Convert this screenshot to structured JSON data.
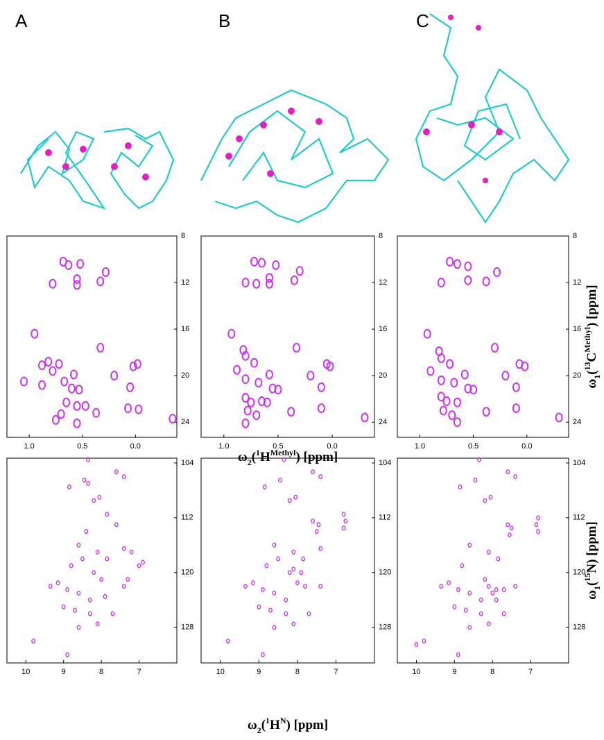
{
  "panel_labels": [
    "A",
    "B",
    "C"
  ],
  "chart_data": [
    {
      "type": "scatter",
      "color": "#cc33ee",
      "xlim": [
        1.21,
        -0.39
      ],
      "ylim": [
        8,
        25.3
      ],
      "xticks": [
        {
          "value": 1,
          "label": "1.0"
        },
        0.5,
        {
          "value": 0,
          "label": "0.0"
        }
      ],
      "yticks": [
        8,
        12,
        16,
        20,
        24
      ],
      "x": [
        0.68,
        0.63,
        0.52,
        0.28,
        0.78,
        0.55,
        0.55,
        0.33,
        0.95,
        0.33,
        0.82,
        0.88,
        0.72,
        0.58,
        0.78,
        0.02,
        -0.02,
        1.05,
        0.88,
        0.67,
        0.53,
        0.6,
        0.2,
        0.05,
        0.65,
        0.55,
        0.47,
        0.7,
        0.75,
        0.55,
        0.37,
        0.07,
        -0.03,
        -0.35
      ],
      "y": [
        10.2,
        10.5,
        10.4,
        11.1,
        12.1,
        11.7,
        12.2,
        11.9,
        16.4,
        17.6,
        18.8,
        19.1,
        19.0,
        19.9,
        19.6,
        19.2,
        19.0,
        20.5,
        20.8,
        20.5,
        21.2,
        21.1,
        20.0,
        21.0,
        22.3,
        22.6,
        22.6,
        23.3,
        23.8,
        24.1,
        23.2,
        22.8,
        22.9,
        23.7
      ]
    },
    {
      "type": "scatter",
      "color": "#cc33ee",
      "xlim": [
        1.21,
        -0.39
      ],
      "ylim": [
        8,
        25.3
      ],
      "xticks": [
        {
          "value": 1,
          "label": "1.0"
        },
        0.5,
        {
          "value": 0,
          "label": "0.0"
        }
      ],
      "yticks": [
        8,
        12,
        16,
        20,
        24
      ],
      "xlabel": {
        "symbol": "ω",
        "index": "2",
        "isotope": "1",
        "nucleus": "H",
        "superscript": "Methyl",
        "unit": "[ppm]"
      },
      "x": [
        0.72,
        0.65,
        0.52,
        0.3,
        0.8,
        0.7,
        0.58,
        0.58,
        0.35,
        0.93,
        0.33,
        0.82,
        0.8,
        0.72,
        0.58,
        0.02,
        0.05,
        0.88,
        0.8,
        0.68,
        0.55,
        0.5,
        0.2,
        0.1,
        0.8,
        0.75,
        0.65,
        0.6,
        0.78,
        0.7,
        0.8,
        0.38,
        0.1,
        -0.3
      ],
      "y": [
        10.2,
        10.3,
        10.5,
        11.0,
        12.0,
        12.1,
        11.6,
        12.1,
        11.8,
        16.4,
        17.6,
        17.8,
        18.3,
        18.9,
        19.9,
        19.2,
        19.0,
        19.5,
        20.3,
        20.6,
        21.1,
        21.2,
        20.0,
        21.0,
        21.9,
        22.3,
        22.2,
        22.3,
        23.0,
        23.4,
        24.1,
        23.1,
        22.8,
        23.6
      ]
    },
    {
      "type": "scatter",
      "color": "#cc33ee",
      "xlim": [
        1.21,
        -0.39
      ],
      "ylim": [
        8,
        25.3
      ],
      "xticks": [
        {
          "value": 1,
          "label": "1.0"
        },
        0.5,
        {
          "value": 0,
          "label": "0.0"
        }
      ],
      "yticks": [
        8,
        12,
        16,
        20,
        24
      ],
      "ylabel": {
        "symbol": "ω",
        "index": "1",
        "isotope": "13",
        "nucleus": "C",
        "superscript": "Methyl",
        "unit": "[ppm]"
      },
      "x": [
        0.72,
        0.65,
        0.55,
        0.28,
        0.8,
        0.55,
        0.38,
        0.93,
        0.3,
        0.82,
        0.8,
        0.72,
        0.58,
        0.02,
        0.07,
        0.9,
        0.8,
        0.68,
        0.55,
        0.5,
        0.2,
        0.1,
        0.8,
        0.75,
        0.65,
        0.78,
        0.7,
        0.65,
        0.38,
        0.1,
        -0.3
      ],
      "y": [
        10.2,
        10.4,
        10.6,
        11.1,
        12.0,
        11.8,
        11.9,
        16.4,
        17.6,
        17.9,
        18.5,
        19.0,
        19.9,
        19.2,
        19.0,
        19.6,
        20.4,
        20.6,
        21.1,
        21.2,
        20.0,
        21.0,
        21.8,
        22.2,
        22.3,
        23.0,
        23.4,
        24.0,
        23.1,
        22.8,
        23.6
      ]
    },
    {
      "type": "scatter",
      "color": "#cc33ee",
      "xlim": [
        10.5,
        6.0
      ],
      "ylim": [
        103.3,
        133.2
      ],
      "xticks": [
        10,
        9,
        8,
        7
      ],
      "yticks": [
        104,
        112,
        120,
        128
      ],
      "x": [
        8.35,
        8.85,
        8.45,
        8.35,
        7.6,
        7.4,
        8.05,
        8.2,
        7.85,
        7.6,
        8.4,
        8.6,
        8.1,
        7.4,
        7.2,
        6.9,
        8.8,
        8.2,
        8.0,
        9.15,
        9.35,
        8.9,
        8.6,
        8.3,
        7.9,
        7.4,
        9.0,
        8.7,
        8.3,
        8.1,
        7.7,
        8.6,
        9.8,
        8.9,
        7.3,
        7.0,
        8.5,
        7.85
      ],
      "y": [
        103.5,
        107.5,
        106.5,
        107.0,
        105.3,
        106.0,
        109.0,
        109.5,
        111.5,
        113.0,
        114.0,
        116.0,
        117.0,
        116.5,
        117.0,
        118.5,
        119.0,
        120.0,
        121.0,
        121.5,
        122.0,
        122.5,
        123.0,
        124.0,
        123.5,
        122.0,
        125.0,
        125.5,
        126.0,
        127.5,
        126.0,
        128.0,
        130.0,
        132.0,
        121.0,
        119.0,
        118.0,
        118.0
      ]
    },
    {
      "type": "scatter",
      "color": "#cc33ee",
      "xlim": [
        10.5,
        6.0
      ],
      "ylim": [
        103.3,
        133.2
      ],
      "xticks": [
        10,
        9,
        8,
        7
      ],
      "yticks": [
        104,
        112,
        120,
        128
      ],
      "xlabel": {
        "symbol": "ω",
        "index": "2",
        "isotope": "1",
        "nucleus": "H",
        "superscript": "N",
        "unit": "[ppm]"
      },
      "x": [
        8.35,
        8.85,
        8.45,
        7.6,
        7.4,
        8.05,
        8.2,
        7.6,
        7.45,
        7.5,
        6.8,
        6.75,
        6.8,
        8.6,
        8.1,
        7.4,
        8.8,
        8.2,
        8.1,
        7.9,
        8.0,
        7.8,
        9.15,
        9.35,
        8.9,
        8.6,
        8.3,
        7.4,
        9.0,
        8.7,
        8.3,
        8.1,
        7.7,
        8.6,
        9.8,
        8.9,
        8.5,
        7.85
      ],
      "y": [
        103.5,
        107.5,
        106.5,
        105.3,
        106.0,
        109.0,
        109.5,
        112.5,
        113.0,
        114.0,
        111.5,
        112.5,
        113.5,
        116.0,
        117.0,
        116.5,
        119.0,
        120.0,
        119.5,
        120.0,
        121.5,
        122.0,
        121.5,
        122.0,
        122.5,
        123.0,
        124.0,
        122.0,
        125.0,
        125.5,
        126.0,
        127.5,
        126.0,
        128.0,
        130.0,
        132.0,
        118.0,
        118.0
      ]
    },
    {
      "type": "scatter",
      "color": "#cc33ee",
      "xlim": [
        10.5,
        6.0
      ],
      "ylim": [
        103.3,
        133.2
      ],
      "xticks": [
        10,
        9,
        8,
        7
      ],
      "yticks": [
        104,
        112,
        120,
        128
      ],
      "ylabel": {
        "symbol": "ω",
        "index": "1",
        "isotope": "15",
        "nucleus": "N",
        "unit": "[ppm]"
      },
      "x": [
        8.35,
        8.85,
        8.45,
        7.6,
        7.4,
        8.05,
        8.2,
        7.6,
        7.5,
        7.55,
        6.8,
        6.85,
        6.8,
        8.6,
        8.1,
        8.8,
        8.2,
        8.1,
        7.9,
        8.0,
        7.7,
        7.9,
        9.15,
        9.35,
        8.9,
        8.6,
        8.3,
        7.4,
        9.0,
        8.7,
        8.3,
        8.1,
        7.7,
        8.6,
        10.0,
        9.8,
        8.9,
        7.85
      ],
      "y": [
        103.5,
        107.5,
        106.5,
        105.3,
        106.0,
        109.0,
        109.5,
        113.0,
        113.5,
        114.5,
        112.0,
        113.0,
        114.0,
        116.0,
        117.0,
        119.0,
        121.0,
        122.0,
        122.5,
        123.0,
        122.5,
        124.0,
        121.5,
        122.0,
        122.5,
        123.0,
        124.0,
        122.0,
        125.0,
        125.5,
        126.0,
        127.5,
        126.0,
        128.0,
        130.5,
        130.0,
        132.0,
        118.0
      ]
    }
  ]
}
